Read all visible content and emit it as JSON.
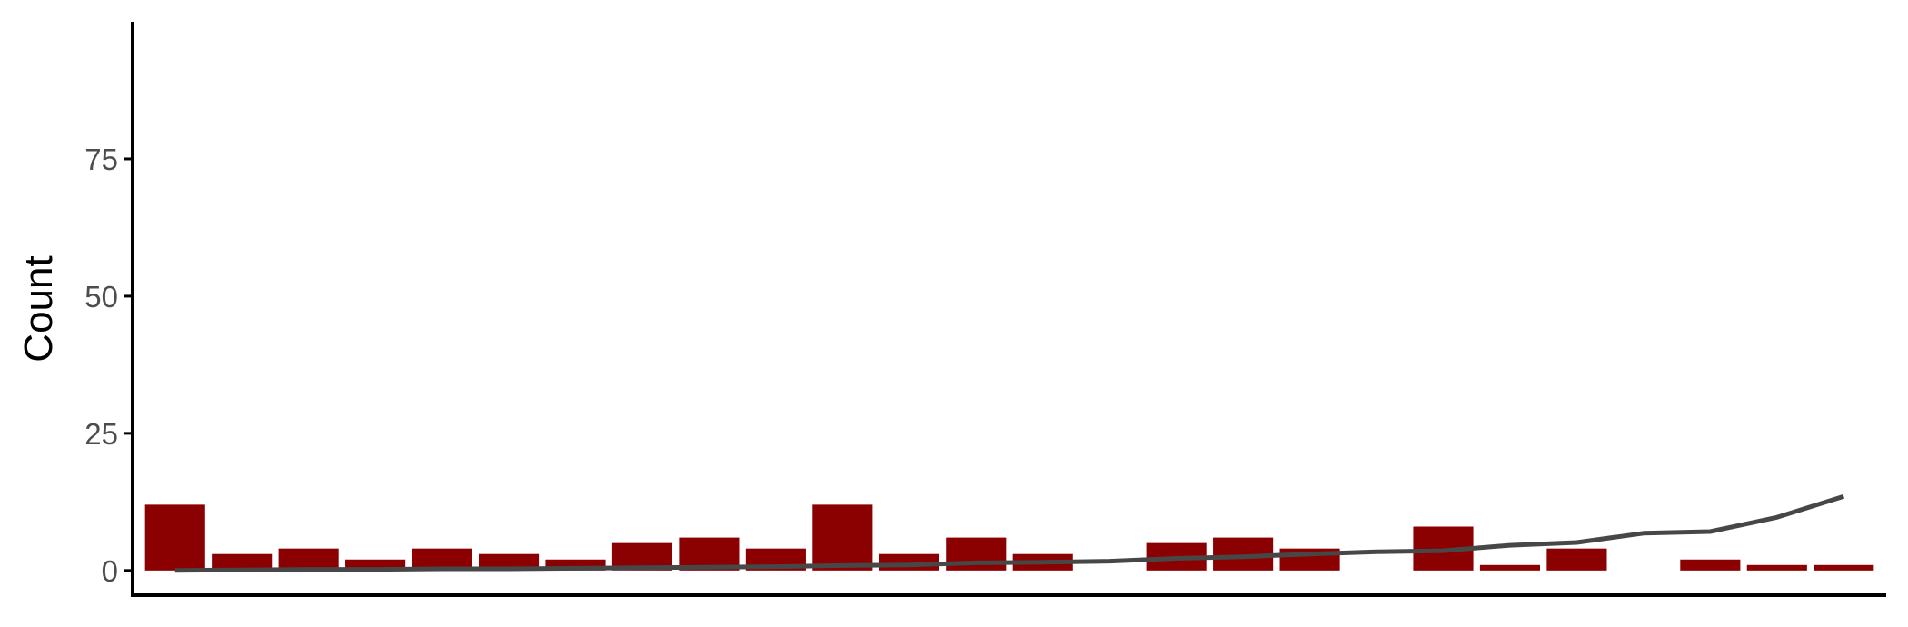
{
  "chart_data": {
    "type": "bar",
    "ylabel": "Count",
    "xlabel": "",
    "ylim": [
      -4.5,
      100
    ],
    "yticks": [
      0,
      25,
      50,
      75
    ],
    "grid": false,
    "legend": "none",
    "bar_color": "#8b0000",
    "line_color": "#474747",
    "bars": [
      12,
      3,
      4,
      2,
      4,
      3,
      2,
      5,
      6,
      4,
      12,
      3,
      6,
      3,
      0,
      5,
      6,
      4,
      0,
      8,
      1,
      4,
      0,
      2,
      1,
      1
    ],
    "line": [
      0,
      0.1,
      0.2,
      0.2,
      0.3,
      0.3,
      0.4,
      0.5,
      0.6,
      0.7,
      0.9,
      1.0,
      1.4,
      1.5,
      1.7,
      2.2,
      2.5,
      3.0,
      3.4,
      3.6,
      4.6,
      5.1,
      6.8,
      7.1,
      9.7,
      13.5
    ]
  }
}
